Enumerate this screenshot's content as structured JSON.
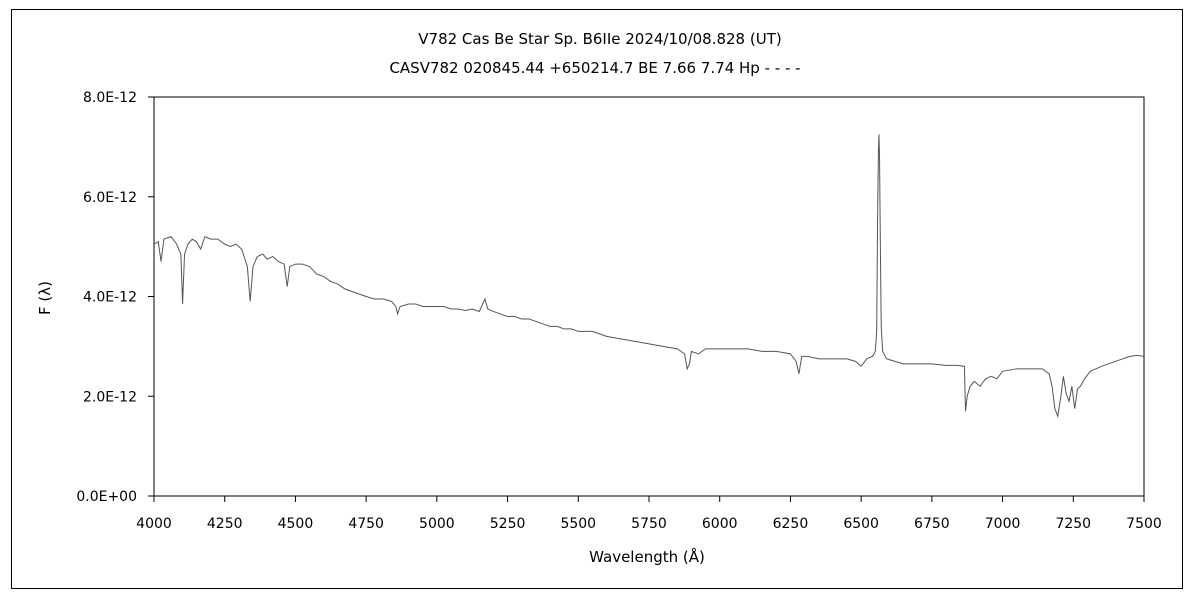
{
  "chart_data": {
    "type": "line",
    "title": "V782 Cas    Be Star    Sp. B6IIe    2024/10/08.828 (UT)",
    "subtitle": "CASV782 020845.44 +650214.7 BE 7.66 7.74 Hp - - - -",
    "xlabel": "Wavelength (Å)",
    "ylabel": "F (λ)",
    "xlim": [
      4000,
      7500
    ],
    "ylim": [
      0,
      8e-12
    ],
    "x_ticks": [
      {
        "value": 4000,
        "label": "4000"
      },
      {
        "value": 4250,
        "label": "4250"
      },
      {
        "value": 4500,
        "label": "4500"
      },
      {
        "value": 4750,
        "label": "4750"
      },
      {
        "value": 5000,
        "label": "5000"
      },
      {
        "value": 5250,
        "label": "5250"
      },
      {
        "value": 5500,
        "label": "5500"
      },
      {
        "value": 5750,
        "label": "5750"
      },
      {
        "value": 6000,
        "label": "6000"
      },
      {
        "value": 6250,
        "label": "6250"
      },
      {
        "value": 6500,
        "label": "6500"
      },
      {
        "value": 6750,
        "label": "6750"
      },
      {
        "value": 7000,
        "label": "7000"
      },
      {
        "value": 7250,
        "label": "7250"
      },
      {
        "value": 7500,
        "label": "7500"
      }
    ],
    "y_ticks": [
      {
        "value": 0,
        "label": "0.0E+00"
      },
      {
        "value": 2e-12,
        "label": "2.0E-12"
      },
      {
        "value": 4e-12,
        "label": "4.0E-12"
      },
      {
        "value": 6e-12,
        "label": "6.0E-12"
      },
      {
        "value": 8e-12,
        "label": "8.0E-12"
      }
    ],
    "grid": false,
    "series": [
      {
        "color": "#555555",
        "points": [
          [
            4000,
            5.05e-12
          ],
          [
            4015,
            5.1e-12
          ],
          [
            4025,
            4.7e-12
          ],
          [
            4035,
            5.15e-12
          ],
          [
            4060,
            5.2e-12
          ],
          [
            4080,
            5.05e-12
          ],
          [
            4095,
            4.85e-12
          ],
          [
            4101,
            3.85e-12
          ],
          [
            4108,
            4.85e-12
          ],
          [
            4120,
            5.05e-12
          ],
          [
            4135,
            5.15e-12
          ],
          [
            4150,
            5.1e-12
          ],
          [
            4165,
            4.95e-12
          ],
          [
            4180,
            5.2e-12
          ],
          [
            4200,
            5.15e-12
          ],
          [
            4225,
            5.15e-12
          ],
          [
            4250,
            5.05e-12
          ],
          [
            4270,
            5e-12
          ],
          [
            4290,
            5.05e-12
          ],
          [
            4310,
            4.95e-12
          ],
          [
            4330,
            4.6e-12
          ],
          [
            4340,
            3.9e-12
          ],
          [
            4350,
            4.6e-12
          ],
          [
            4365,
            4.8e-12
          ],
          [
            4385,
            4.85e-12
          ],
          [
            4400,
            4.75e-12
          ],
          [
            4420,
            4.8e-12
          ],
          [
            4440,
            4.7e-12
          ],
          [
            4460,
            4.65e-12
          ],
          [
            4471,
            4.2e-12
          ],
          [
            4480,
            4.6e-12
          ],
          [
            4500,
            4.65e-12
          ],
          [
            4525,
            4.65e-12
          ],
          [
            4550,
            4.6e-12
          ],
          [
            4575,
            4.45e-12
          ],
          [
            4600,
            4.4e-12
          ],
          [
            4625,
            4.3e-12
          ],
          [
            4650,
            4.25e-12
          ],
          [
            4675,
            4.15e-12
          ],
          [
            4700,
            4.1e-12
          ],
          [
            4725,
            4.05e-12
          ],
          [
            4750,
            4e-12
          ],
          [
            4780,
            3.95e-12
          ],
          [
            4810,
            3.95e-12
          ],
          [
            4840,
            3.9e-12
          ],
          [
            4855,
            3.8e-12
          ],
          [
            4861,
            3.65e-12
          ],
          [
            4870,
            3.8e-12
          ],
          [
            4900,
            3.85e-12
          ],
          [
            4925,
            3.85e-12
          ],
          [
            4950,
            3.8e-12
          ],
          [
            4975,
            3.8e-12
          ],
          [
            5000,
            3.8e-12
          ],
          [
            5025,
            3.8e-12
          ],
          [
            5050,
            3.75e-12
          ],
          [
            5075,
            3.75e-12
          ],
          [
            5100,
            3.72e-12
          ],
          [
            5125,
            3.75e-12
          ],
          [
            5150,
            3.7e-12
          ],
          [
            5170,
            3.95e-12
          ],
          [
            5180,
            3.75e-12
          ],
          [
            5200,
            3.7e-12
          ],
          [
            5225,
            3.65e-12
          ],
          [
            5250,
            3.6e-12
          ],
          [
            5275,
            3.6e-12
          ],
          [
            5300,
            3.55e-12
          ],
          [
            5325,
            3.55e-12
          ],
          [
            5350,
            3.5e-12
          ],
          [
            5375,
            3.45e-12
          ],
          [
            5400,
            3.4e-12
          ],
          [
            5425,
            3.4e-12
          ],
          [
            5450,
            3.35e-12
          ],
          [
            5475,
            3.35e-12
          ],
          [
            5500,
            3.3e-12
          ],
          [
            5550,
            3.3e-12
          ],
          [
            5600,
            3.2e-12
          ],
          [
            5650,
            3.15e-12
          ],
          [
            5700,
            3.1e-12
          ],
          [
            5750,
            3.05e-12
          ],
          [
            5800,
            3e-12
          ],
          [
            5850,
            2.95e-12
          ],
          [
            5876,
            2.85e-12
          ],
          [
            5885,
            2.55e-12
          ],
          [
            5893,
            2.65e-12
          ],
          [
            5900,
            2.9e-12
          ],
          [
            5925,
            2.85e-12
          ],
          [
            5950,
            2.95e-12
          ],
          [
            6000,
            2.95e-12
          ],
          [
            6050,
            2.95e-12
          ],
          [
            6100,
            2.95e-12
          ],
          [
            6150,
            2.9e-12
          ],
          [
            6200,
            2.9e-12
          ],
          [
            6250,
            2.85e-12
          ],
          [
            6270,
            2.7e-12
          ],
          [
            6280,
            2.45e-12
          ],
          [
            6290,
            2.8e-12
          ],
          [
            6310,
            2.8e-12
          ],
          [
            6350,
            2.75e-12
          ],
          [
            6400,
            2.75e-12
          ],
          [
            6450,
            2.75e-12
          ],
          [
            6480,
            2.7e-12
          ],
          [
            6500,
            2.6e-12
          ],
          [
            6520,
            2.75e-12
          ],
          [
            6540,
            2.8e-12
          ],
          [
            6550,
            2.9e-12
          ],
          [
            6555,
            3.3e-12
          ],
          [
            6558,
            5.5e-12
          ],
          [
            6561,
            6.9e-12
          ],
          [
            6563,
            7.25e-12
          ],
          [
            6565,
            6.8e-12
          ],
          [
            6568,
            5e-12
          ],
          [
            6571,
            3.4e-12
          ],
          [
            6576,
            2.9e-12
          ],
          [
            6590,
            2.75e-12
          ],
          [
            6620,
            2.7e-12
          ],
          [
            6650,
            2.65e-12
          ],
          [
            6700,
            2.65e-12
          ],
          [
            6750,
            2.65e-12
          ],
          [
            6800,
            2.62e-12
          ],
          [
            6840,
            2.62e-12
          ],
          [
            6865,
            2.6e-12
          ],
          [
            6869,
            1.7e-12
          ],
          [
            6875,
            2e-12
          ],
          [
            6885,
            2.2e-12
          ],
          [
            6900,
            2.3e-12
          ],
          [
            6920,
            2.2e-12
          ],
          [
            6940,
            2.35e-12
          ],
          [
            6960,
            2.4e-12
          ],
          [
            6980,
            2.35e-12
          ],
          [
            7000,
            2.5e-12
          ],
          [
            7050,
            2.55e-12
          ],
          [
            7100,
            2.55e-12
          ],
          [
            7140,
            2.55e-12
          ],
          [
            7165,
            2.45e-12
          ],
          [
            7175,
            2.2e-12
          ],
          [
            7185,
            1.75e-12
          ],
          [
            7195,
            1.6e-12
          ],
          [
            7205,
            1.95e-12
          ],
          [
            7215,
            2.4e-12
          ],
          [
            7225,
            2.05e-12
          ],
          [
            7235,
            1.9e-12
          ],
          [
            7245,
            2.2e-12
          ],
          [
            7255,
            1.75e-12
          ],
          [
            7265,
            2.15e-12
          ],
          [
            7275,
            2.2e-12
          ],
          [
            7290,
            2.35e-12
          ],
          [
            7310,
            2.5e-12
          ],
          [
            7330,
            2.55e-12
          ],
          [
            7350,
            2.6e-12
          ],
          [
            7375,
            2.65e-12
          ],
          [
            7400,
            2.7e-12
          ],
          [
            7425,
            2.75e-12
          ],
          [
            7450,
            2.8e-12
          ],
          [
            7475,
            2.82e-12
          ],
          [
            7500,
            2.8e-12
          ]
        ]
      }
    ]
  }
}
